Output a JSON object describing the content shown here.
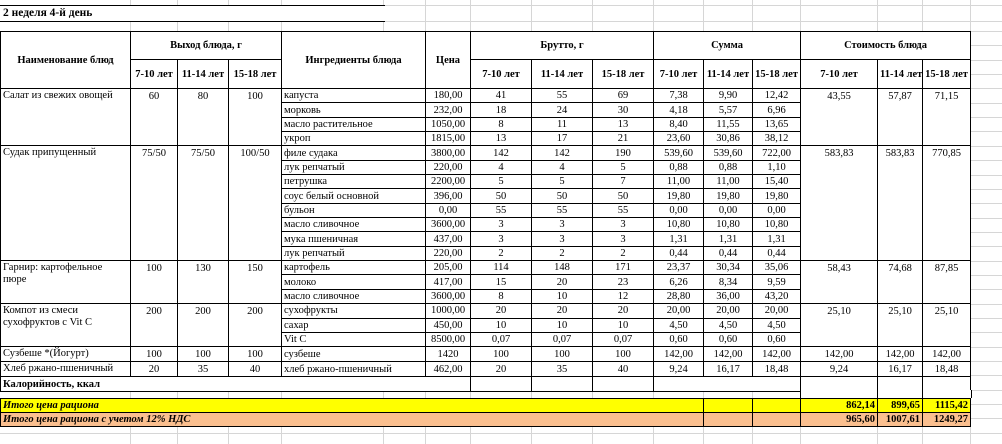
{
  "sheet_title": "2 неделя 4-й день",
  "table": {
    "headers": {
      "dish": "Наименование блюд",
      "yield": "Выход блюда, г",
      "ingredients": "Ингредиенты блюда",
      "price": "Цена",
      "gross": "Брутто, г",
      "sum": "Сумма",
      "cost": "Стоимость блюда",
      "age_groups": [
        "7-10 лет",
        "11-14 лет",
        "15-18 лет"
      ]
    },
    "groups": [
      {
        "dish": "Салат из свежих овощей",
        "yield": [
          "60",
          "80",
          "100"
        ],
        "cost": [
          "43,55",
          "57,87",
          "71,15"
        ],
        "rows": [
          {
            "ingredient": "капуста",
            "price": "180,00",
            "gross": [
              "41",
              "55",
              "69"
            ],
            "sum": [
              "7,38",
              "9,90",
              "12,42"
            ]
          },
          {
            "ingredient": "морковь",
            "price": "232,00",
            "gross": [
              "18",
              "24",
              "30"
            ],
            "sum": [
              "4,18",
              "5,57",
              "6,96"
            ]
          },
          {
            "ingredient": "масло растительное",
            "price": "1050,00",
            "gross": [
              "8",
              "11",
              "13"
            ],
            "sum": [
              "8,40",
              "11,55",
              "13,65"
            ]
          },
          {
            "ingredient": "укроп",
            "price": "1815,00",
            "gross": [
              "13",
              "17",
              "21"
            ],
            "sum": [
              "23,60",
              "30,86",
              "38,12"
            ]
          }
        ]
      },
      {
        "dish": "Судак припущенный",
        "yield": [
          "75/50",
          "75/50",
          "100/50"
        ],
        "cost": [
          "583,83",
          "583,83",
          "770,85"
        ],
        "rows": [
          {
            "ingredient": "филе судака",
            "price": "3800,00",
            "gross": [
              "142",
              "142",
              "190"
            ],
            "sum": [
              "539,60",
              "539,60",
              "722,00"
            ]
          },
          {
            "ingredient": "лук репчатый",
            "price": "220,00",
            "gross": [
              "4",
              "4",
              "5"
            ],
            "sum": [
              "0,88",
              "0,88",
              "1,10"
            ]
          },
          {
            "ingredient": "петрушка",
            "price": "2200,00",
            "gross": [
              "5",
              "5",
              "7"
            ],
            "sum": [
              "11,00",
              "11,00",
              "15,40"
            ]
          },
          {
            "ingredient": "соус белый основной",
            "price": "396,00",
            "gross": [
              "50",
              "50",
              "50"
            ],
            "sum": [
              "19,80",
              "19,80",
              "19,80"
            ]
          },
          {
            "ingredient": "бульон",
            "price": "0,00",
            "gross": [
              "55",
              "55",
              "55"
            ],
            "sum": [
              "0,00",
              "0,00",
              "0,00"
            ]
          },
          {
            "ingredient": "масло сливочное",
            "price": "3600,00",
            "gross": [
              "3",
              "3",
              "3"
            ],
            "sum": [
              "10,80",
              "10,80",
              "10,80"
            ]
          },
          {
            "ingredient": "мука пшеничная",
            "price": "437,00",
            "gross": [
              "3",
              "3",
              "3"
            ],
            "sum": [
              "1,31",
              "1,31",
              "1,31"
            ]
          },
          {
            "ingredient": "лук репчатый",
            "price": "220,00",
            "gross": [
              "2",
              "2",
              "2"
            ],
            "sum": [
              "0,44",
              "0,44",
              "0,44"
            ]
          }
        ]
      },
      {
        "dish": "Гарнир:  картофельное пюре",
        "yield": [
          "100",
          "130",
          "150"
        ],
        "cost": [
          "58,43",
          "74,68",
          "87,85"
        ],
        "rows": [
          {
            "ingredient": "картофель",
            "price": "205,00",
            "gross": [
              "114",
              "148",
              "171"
            ],
            "sum": [
              "23,37",
              "30,34",
              "35,06"
            ]
          },
          {
            "ingredient": "молоко",
            "price": "417,00",
            "gross": [
              "15",
              "20",
              "23"
            ],
            "sum": [
              "6,26",
              "8,34",
              "9,59"
            ]
          },
          {
            "ingredient": "масло сливочное",
            "price": "3600,00",
            "gross": [
              "8",
              "10",
              "12"
            ],
            "sum": [
              "28,80",
              "36,00",
              "43,20"
            ]
          }
        ]
      },
      {
        "dish": "Компот из смеси сухофруктов с Vit C",
        "yield": [
          "200",
          "200",
          "200"
        ],
        "cost": [
          "25,10",
          "25,10",
          "25,10"
        ],
        "rows": [
          {
            "ingredient": "сухофрукты",
            "price": "1000,00",
            "gross": [
              "20",
              "20",
              "20"
            ],
            "sum": [
              "20,00",
              "20,00",
              "20,00"
            ]
          },
          {
            "ingredient": "сахар",
            "price": "450,00",
            "gross": [
              "10",
              "10",
              "10"
            ],
            "sum": [
              "4,50",
              "4,50",
              "4,50"
            ]
          },
          {
            "ingredient": "Vit C",
            "price": "8500,00",
            "gross": [
              "0,07",
              "0,07",
              "0,07"
            ],
            "sum": [
              "0,60",
              "0,60",
              "0,60"
            ]
          }
        ]
      },
      {
        "dish": "Сузбеше *(Йогурт)",
        "yield": [
          "100",
          "100",
          "100"
        ],
        "cost": [
          "142,00",
          "142,00",
          "142,00"
        ],
        "rows": [
          {
            "ingredient": "сузбеше",
            "price": "1420",
            "gross": [
              "100",
              "100",
              "100"
            ],
            "sum": [
              "142,00",
              "142,00",
              "142,00"
            ]
          }
        ]
      },
      {
        "dish": "Хлеб ржано-пшеничный",
        "yield": [
          "20",
          "35",
          "40"
        ],
        "cost": [
          "9,24",
          "16,17",
          "18,48"
        ],
        "rows": [
          {
            "ingredient": "хлеб ржано-пшеничный",
            "price": "462,00",
            "gross": [
              "20",
              "35",
              "40"
            ],
            "sum": [
              "9,24",
              "16,17",
              "18,48"
            ]
          }
        ]
      }
    ],
    "calories_label": "Калорийность, ккал"
  },
  "totals": [
    {
      "label": "Итого цена рациона",
      "values": [
        "862,14",
        "899,65",
        "1115,42"
      ],
      "bg": "#ffff00"
    },
    {
      "label": "Итого цена рациона с учетом 12% НДС",
      "values": [
        "965,60",
        "1007,61",
        "1249,27"
      ],
      "bg": "#fabf8f"
    }
  ]
}
